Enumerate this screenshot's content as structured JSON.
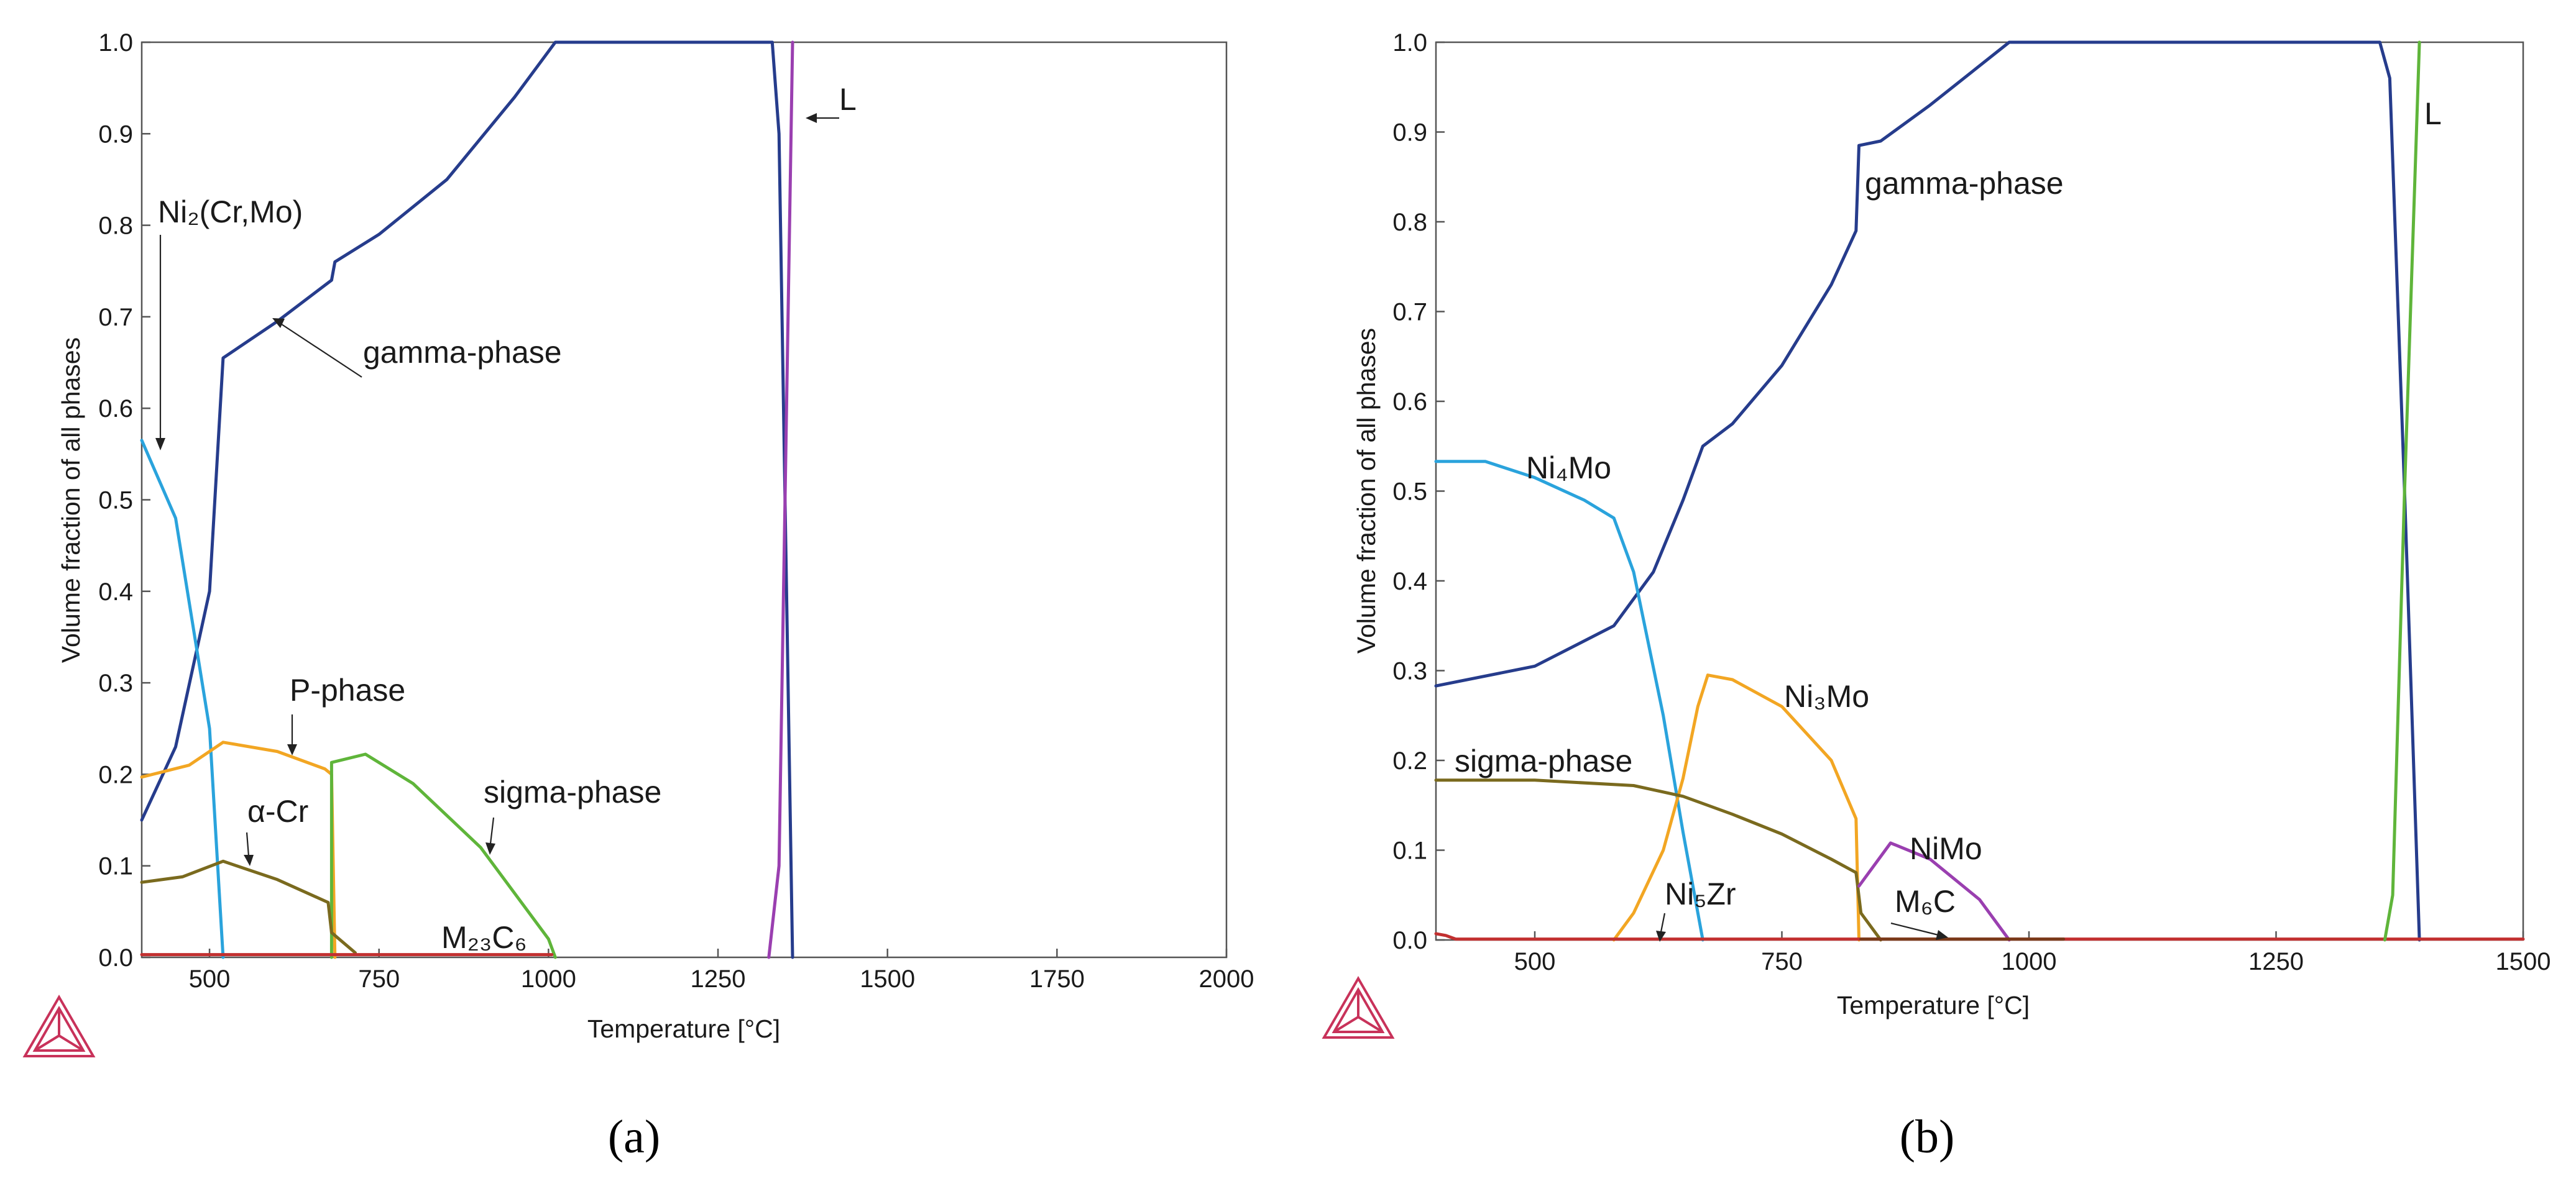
{
  "colors": {
    "gamma": "#263c8c",
    "ni2crmo": "#2aa3dc",
    "pphase": "#f2a623",
    "sigma_a": "#5fb53a",
    "alphacr": "#7a6a1e",
    "m23c6": "#c23030",
    "liquid_a": "#9a3fb0",
    "ni4mo": "#2aa3dc",
    "ni3mo": "#f2a623",
    "sigma_b": "#7a6a1e",
    "nimo": "#9a3fb0",
    "ni5zr": "#c23030",
    "m6c": "#7a3a1a",
    "liquid_b": "#5fb53a",
    "logo": "#c8325a"
  },
  "logo_icon": "thermo-calc-triangle-icon",
  "chart_data": [
    {
      "type": "line",
      "panel_label": "(a)",
      "xlabel": "Temperature [°C]",
      "ylabel": "Volume fraction of all phases",
      "xlim": [
        400,
        2000
      ],
      "ylim": [
        0,
        1
      ],
      "x_ticks": [
        "500",
        "750",
        "1000",
        "1250",
        "1500",
        "1750",
        "2000"
      ],
      "y_ticks": [
        "0.0",
        "0.1",
        "0.2",
        "0.3",
        "0.4",
        "0.5",
        "0.6",
        "0.7",
        "0.8",
        "0.9",
        "1.0"
      ],
      "grid": false,
      "series": [
        {
          "name": "gamma-phase",
          "x": [
            400,
            450,
            500,
            520,
            600,
            680,
            685,
            750,
            850,
            950,
            1010,
            1330,
            1340,
            1360
          ],
          "y": [
            0.15,
            0.23,
            0.4,
            0.655,
            0.695,
            0.74,
            0.76,
            0.79,
            0.85,
            0.94,
            1.0,
            1.0,
            0.9,
            0.0
          ]
        },
        {
          "name": "Ni2(Cr,Mo)",
          "x": [
            400,
            450,
            500,
            520
          ],
          "y": [
            0.565,
            0.48,
            0.25,
            0.0
          ]
        },
        {
          "name": "P-phase",
          "x": [
            400,
            470,
            520,
            600,
            670,
            680,
            685
          ],
          "y": [
            0.197,
            0.21,
            0.235,
            0.225,
            0.206,
            0.2,
            0.0
          ]
        },
        {
          "name": "sigma-phase",
          "x": [
            680,
            680,
            730,
            800,
            900,
            1000,
            1010
          ],
          "y": [
            0.0,
            0.213,
            0.222,
            0.19,
            0.12,
            0.02,
            0.0
          ]
        },
        {
          "name": "α-Cr",
          "x": [
            400,
            460,
            520,
            600,
            675,
            680,
            715
          ],
          "y": [
            0.082,
            0.088,
            0.105,
            0.085,
            0.06,
            0.027,
            0.005
          ]
        },
        {
          "name": "M23C6",
          "x": [
            400,
            1005
          ],
          "y": [
            0.003,
            0.003
          ]
        },
        {
          "name": "L",
          "x": [
            1325,
            1340,
            1360
          ],
          "y": [
            0.0,
            0.1,
            1.0
          ]
        }
      ],
      "annotations": [
        "Ni₂(Cr,Mo)",
        "gamma-phase",
        "P-phase",
        "α-Cr",
        "sigma-phase",
        "M₂₃C₆",
        "L"
      ]
    },
    {
      "type": "line",
      "panel_label": "(b)",
      "xlabel": "Temperature [°C]",
      "ylabel": "Volume fraction of all phases",
      "xlim": [
        400,
        1500
      ],
      "ylim": [
        0,
        1
      ],
      "x_ticks": [
        "500",
        "750",
        "1000",
        "1250",
        "1500"
      ],
      "y_ticks": [
        "0.0",
        "0.1",
        "0.2",
        "0.3",
        "0.4",
        "0.5",
        "0.6",
        "0.7",
        "0.8",
        "0.9",
        "1.0"
      ],
      "grid": false,
      "series": [
        {
          "name": "gamma-phase",
          "x": [
            400,
            500,
            580,
            620,
            650,
            670,
            700,
            750,
            800,
            825,
            828,
            850,
            900,
            980,
            1355,
            1365,
            1380,
            1395
          ],
          "y": [
            0.283,
            0.305,
            0.35,
            0.41,
            0.49,
            0.55,
            0.575,
            0.64,
            0.73,
            0.79,
            0.885,
            0.89,
            0.93,
            1.0,
            1.0,
            0.96,
            0.5,
            0.0
          ]
        },
        {
          "name": "Ni4Mo",
          "x": [
            400,
            450,
            500,
            550,
            580,
            600,
            630,
            650,
            670
          ],
          "y": [
            0.533,
            0.533,
            0.515,
            0.49,
            0.47,
            0.41,
            0.25,
            0.12,
            0.0
          ]
        },
        {
          "name": "Ni3Mo",
          "x": [
            580,
            600,
            630,
            650,
            665,
            675,
            700,
            750,
            800,
            825,
            828
          ],
          "y": [
            0.0,
            0.03,
            0.1,
            0.18,
            0.26,
            0.295,
            0.29,
            0.26,
            0.2,
            0.135,
            0.0
          ]
        },
        {
          "name": "sigma-phase",
          "x": [
            400,
            500,
            600,
            650,
            700,
            750,
            800,
            825,
            830,
            850
          ],
          "y": [
            0.178,
            0.178,
            0.172,
            0.16,
            0.14,
            0.118,
            0.09,
            0.075,
            0.03,
            0.0
          ]
        },
        {
          "name": "NiMo",
          "x": [
            828,
            860,
            900,
            950,
            980
          ],
          "y": [
            0.06,
            0.108,
            0.09,
            0.045,
            0.0
          ]
        },
        {
          "name": "Ni5Zr",
          "x": [
            400,
            410,
            420,
            1500
          ],
          "y": [
            0.007,
            0.005,
            0.001,
            0.001
          ]
        },
        {
          "name": "M6C",
          "x": [
            830,
            1035
          ],
          "y": [
            0.001,
            0.001
          ]
        },
        {
          "name": "L",
          "x": [
            1360,
            1368,
            1380,
            1395
          ],
          "y": [
            0.0,
            0.05,
            0.5,
            1.0
          ]
        }
      ],
      "annotations": [
        "Ni₄Mo",
        "gamma-phase",
        "Ni₃Mo",
        "sigma-phase",
        "NiMo",
        "Ni₅Zr",
        "M₆C",
        "L"
      ]
    }
  ]
}
